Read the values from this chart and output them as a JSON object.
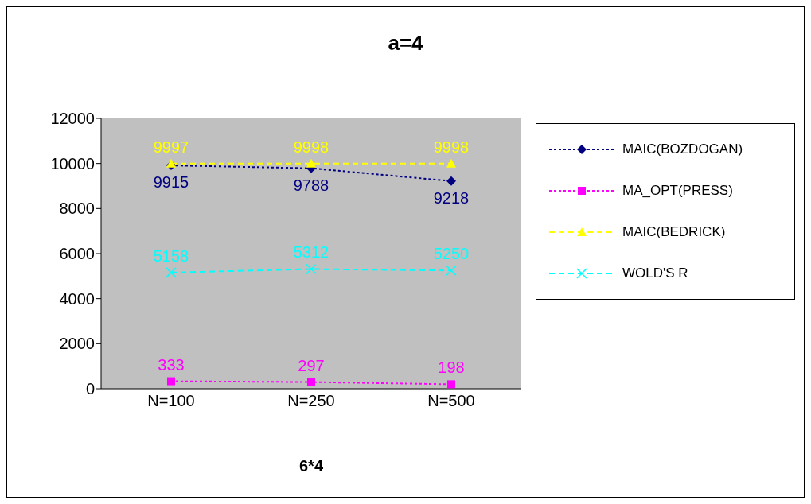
{
  "chart_data": {
    "type": "line",
    "title": "a=4",
    "xlabel": "6*4",
    "categories": [
      "N=100",
      "N=250",
      "N=500"
    ],
    "series": [
      {
        "name": "MAIC(BOZDOGAN)",
        "color": "#000080",
        "values": [
          9915,
          9788,
          9218
        ],
        "marker": "diamond",
        "line_style": "dotted"
      },
      {
        "name": "MA_OPT(PRESS)",
        "color": "#ff00ff",
        "values": [
          333,
          297,
          198
        ],
        "marker": "square",
        "line_style": "dotted"
      },
      {
        "name": "MAIC(BEDRICK)",
        "color": "#ffff00",
        "values": [
          9997,
          9998,
          9998
        ],
        "marker": "triangle",
        "line_style": "dashed"
      },
      {
        "name": "WOLD'S R",
        "color": "#00ffff",
        "values": [
          5158,
          5312,
          5250
        ],
        "marker": "cross",
        "line_style": "dashed"
      }
    ],
    "ylim": [
      0,
      12000
    ],
    "yticks": [
      0,
      2000,
      4000,
      6000,
      8000,
      10000,
      12000
    ],
    "legend": "right",
    "data_labels": true
  }
}
